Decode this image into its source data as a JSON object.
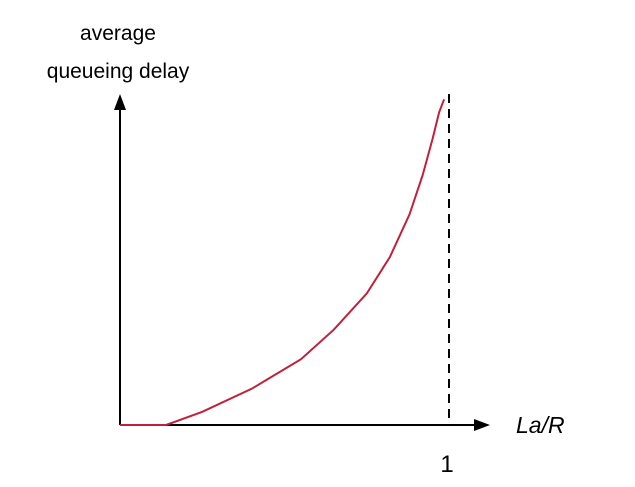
{
  "chart_data": {
    "type": "line",
    "title": "",
    "ylabel": [
      "average",
      "queueing delay"
    ],
    "xlabel": "La/R",
    "x_ticks": [
      {
        "value": 1,
        "label": "1"
      }
    ],
    "xlim": [
      0,
      1.1
    ],
    "ylim": [
      0,
      1
    ],
    "asymptote": {
      "x": 1,
      "style": "dashed"
    },
    "grid": false,
    "series": [
      {
        "color": "#c0203a",
        "x": [
          0,
          0.14,
          0.25,
          0.4,
          0.55,
          0.65,
          0.75,
          0.82,
          0.88,
          0.92,
          0.95,
          0.97,
          0.985
        ],
        "y": [
          0,
          0,
          0.04,
          0.11,
          0.2,
          0.29,
          0.4,
          0.51,
          0.64,
          0.76,
          0.87,
          0.95,
          0.99
        ]
      }
    ],
    "colors": {
      "axis": "#000000",
      "curve": "#c0203a",
      "asymptote": "#000000"
    }
  }
}
